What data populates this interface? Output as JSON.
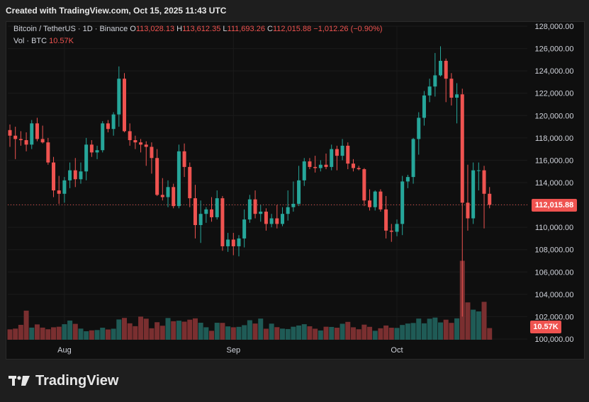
{
  "header": {
    "created_text": "Created with TradingView.com, Oct 15, 2025 11:43 UTC"
  },
  "legend": {
    "symbol": "Bitcoin / TetherUS · 1D · Binance",
    "o_label": "O",
    "o_value": "113,028.13",
    "h_label": "H",
    "h_value": "113,612.35",
    "l_label": "L",
    "l_value": "111,693.26",
    "c_label": "C",
    "c_value": "112,015.88",
    "change": "−1,012.26 (−0.90%)",
    "vol_label": "Vol · BTC",
    "vol_value": "10.57K"
  },
  "badges": {
    "last_price": "112,015.88",
    "last_volume": "10.57K"
  },
  "footer": {
    "brand": "TradingView"
  },
  "colors": {
    "up": "#26a69a",
    "down": "#ef5350",
    "up_volume": "#1f5b56",
    "down_volume": "#7a2f30",
    "background": "#0f0f0f",
    "text": "#d1d4dc"
  },
  "chart_data": {
    "type": "candlestick",
    "ylim": [
      100000,
      128000
    ],
    "y_ticks": [
      "128,000.00",
      "126,000.00",
      "124,000.00",
      "122,000.00",
      "120,000.00",
      "118,000.00",
      "116,000.00",
      "114,000.00",
      "112,015.88",
      "110,000.00",
      "108,000.00",
      "106,000.00",
      "104,000.00",
      "102,000.00",
      "100,000.00"
    ],
    "x_tick_labels": [
      {
        "label": "Aug",
        "index": 10
      },
      {
        "label": "Sep",
        "index": 41
      },
      {
        "label": "Oct",
        "index": 71
      }
    ],
    "last_price": 112015.88,
    "series": [
      {
        "name": "Bitcoin / TetherUS",
        "ohlc": [
          [
            118700,
            119200,
            117200,
            118200
          ],
          [
            118200,
            119000,
            116100,
            117900
          ],
          [
            117900,
            118600,
            117300,
            117800
          ],
          [
            117800,
            118500,
            116800,
            117400
          ],
          [
            117400,
            119600,
            117000,
            119300
          ],
          [
            119300,
            119800,
            117700,
            117900
          ],
          [
            117900,
            119100,
            117500,
            117600
          ],
          [
            117600,
            118000,
            115600,
            115800
          ],
          [
            115800,
            116300,
            112700,
            113300
          ],
          [
            113300,
            114600,
            112100,
            113000
          ],
          [
            113000,
            114500,
            112200,
            114200
          ],
          [
            114200,
            115800,
            113500,
            115100
          ],
          [
            115100,
            116200,
            113600,
            114300
          ],
          [
            114300,
            115800,
            113900,
            115000
          ],
          [
            115000,
            118000,
            114200,
            117400
          ],
          [
            117400,
            117800,
            116300,
            116700
          ],
          [
            116700,
            117300,
            116100,
            116900
          ],
          [
            116900,
            119500,
            116700,
            119300
          ],
          [
            119300,
            119600,
            118500,
            118800
          ],
          [
            118800,
            120300,
            118200,
            120100
          ],
          [
            120100,
            124400,
            119000,
            123300
          ],
          [
            123300,
            123800,
            118500,
            118600
          ],
          [
            118600,
            119300,
            117300,
            117800
          ],
          [
            117800,
            118200,
            117000,
            117600
          ],
          [
            117600,
            117900,
            116700,
            117400
          ],
          [
            117400,
            117700,
            115500,
            117200
          ],
          [
            117200,
            117600,
            114800,
            116200
          ],
          [
            116200,
            117000,
            112800,
            112900
          ],
          [
            112900,
            114400,
            112400,
            112700
          ],
          [
            112700,
            114200,
            111800,
            113600
          ],
          [
            113600,
            113900,
            111700,
            111900
          ],
          [
            111900,
            117400,
            111700,
            116800
          ],
          [
            116800,
            117500,
            114500,
            115400
          ],
          [
            115400,
            115800,
            111800,
            112600
          ],
          [
            112600,
            113800,
            109000,
            110200
          ],
          [
            110200,
            112400,
            108600,
            111200
          ],
          [
            111200,
            111800,
            110400,
            111600
          ],
          [
            111600,
            112700,
            110500,
            110900
          ],
          [
            110900,
            113300,
            110700,
            112600
          ],
          [
            112600,
            112800,
            107900,
            108300
          ],
          [
            108300,
            109500,
            107800,
            108900
          ],
          [
            108900,
            109500,
            107500,
            108300
          ],
          [
            108300,
            109300,
            107400,
            109000
          ],
          [
            109000,
            111600,
            108200,
            110700
          ],
          [
            110700,
            112900,
            110400,
            112500
          ],
          [
            112500,
            113300,
            110800,
            111200
          ],
          [
            111200,
            112000,
            110500,
            111400
          ],
          [
            111400,
            111700,
            109700,
            110300
          ],
          [
            110300,
            111200,
            110000,
            110800
          ],
          [
            110800,
            112000,
            109900,
            110300
          ],
          [
            110300,
            111800,
            110100,
            111200
          ],
          [
            111200,
            113300,
            110600,
            111800
          ],
          [
            111800,
            114100,
            111400,
            112100
          ],
          [
            112100,
            115500,
            111900,
            114200
          ],
          [
            114200,
            116200,
            113700,
            115900
          ],
          [
            115900,
            116200,
            115200,
            115400
          ],
          [
            115400,
            116400,
            114900,
            115300
          ],
          [
            115300,
            116000,
            115000,
            115600
          ],
          [
            115600,
            116600,
            115200,
            115400
          ],
          [
            115400,
            117400,
            115100,
            117000
          ],
          [
            117000,
            117300,
            115100,
            116400
          ],
          [
            116400,
            117900,
            116000,
            117300
          ],
          [
            117300,
            117600,
            115200,
            115700
          ],
          [
            115700,
            116100,
            115000,
            115300
          ],
          [
            115300,
            115500,
            115100,
            115200
          ],
          [
            115200,
            115300,
            111900,
            112400
          ],
          [
            112400,
            113400,
            111500,
            111800
          ],
          [
            111800,
            113300,
            111500,
            113200
          ],
          [
            113200,
            113400,
            111400,
            111600
          ],
          [
            111600,
            112800,
            109000,
            109700
          ],
          [
            109700,
            110300,
            108700,
            109600
          ],
          [
            109600,
            110700,
            109200,
            110300
          ],
          [
            110300,
            114600,
            109300,
            114100
          ],
          [
            114100,
            114700,
            113500,
            114500
          ],
          [
            114500,
            118000,
            113900,
            117900
          ],
          [
            117900,
            120300,
            116500,
            119800
          ],
          [
            119800,
            122200,
            119100,
            121800
          ],
          [
            121800,
            123300,
            121200,
            122600
          ],
          [
            122600,
            125600,
            121700,
            123600
          ],
          [
            123600,
            126200,
            123500,
            124900
          ],
          [
            124900,
            125100,
            121200,
            123300
          ],
          [
            123300,
            123800,
            120900,
            121600
          ],
          [
            121600,
            122900,
            119300,
            121900
          ],
          [
            121900,
            122400,
            102000,
            112200
          ],
          [
            112200,
            115600,
            109700,
            110800
          ],
          [
            110800,
            115800,
            110300,
            115100
          ],
          [
            115100,
            115800,
            113300,
            115100
          ],
          [
            115100,
            115500,
            109900,
            113000
          ],
          [
            113000,
            113600,
            111700,
            112016
          ]
        ]
      }
    ],
    "volume": [
      9.4,
      10.1,
      13.5,
      26.4,
      11.0,
      13.9,
      11.0,
      9.5,
      11.3,
      11.8,
      14.1,
      17.4,
      14.4,
      10.1,
      7.7,
      8.5,
      8.8,
      10.9,
      9.3,
      10.0,
      18.4,
      19.8,
      14.9,
      12.3,
      21.0,
      19.1,
      10.4,
      15.9,
      12.7,
      19.7,
      16.8,
      17.3,
      16.4,
      18.2,
      19.4,
      15.4,
      11.3,
      8.1,
      15.4,
      15.3,
      12.1,
      11.3,
      11.7,
      13.2,
      17.7,
      14.7,
      19.2,
      10.0,
      14.6,
      11.4,
      10.1,
      9.7,
      11.8,
      12.9,
      14.1,
      12.2,
      10.0,
      8.4,
      11.8,
      11.6,
      10.9,
      14.5,
      16.2,
      11.3,
      9.5,
      13.7,
      11.7,
      8.1,
      10.4,
      12.9,
      10.9,
      10.7,
      13.4,
      14.7,
      15.2,
      19.2,
      14.9,
      19.1,
      20.1,
      15.7,
      18.2,
      15.3,
      19.4,
      71.7,
      33.9,
      27.3,
      25.7,
      34.4,
      10.57
    ]
  }
}
